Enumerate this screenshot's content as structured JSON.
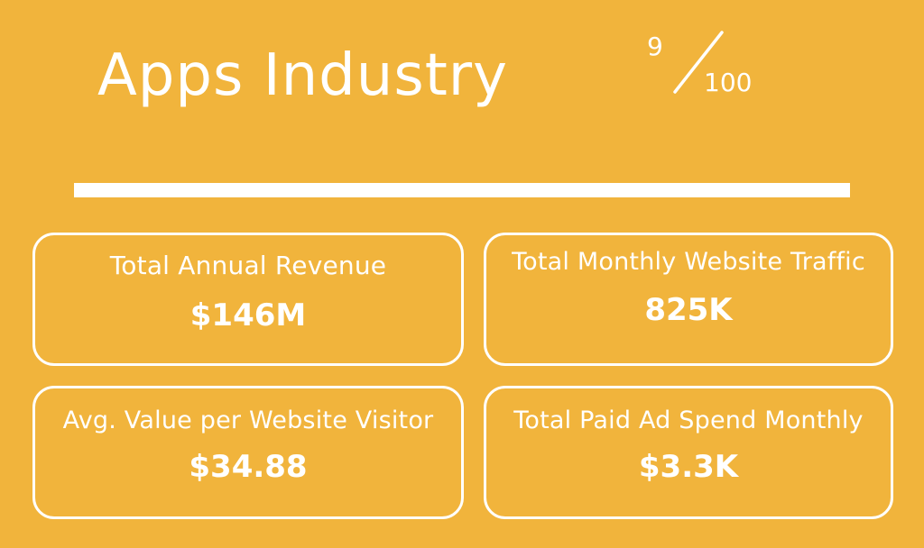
{
  "header": {
    "title": "Apps Industry",
    "rank": {
      "value": "9",
      "total": "100"
    }
  },
  "stats": [
    {
      "label": "Total Annual Revenue",
      "value": "$146M"
    },
    {
      "label": "Total Monthly Website Traffic",
      "value": "825K"
    },
    {
      "label": "Avg. Value per Website Visitor",
      "value": "$34.88"
    },
    {
      "label": "Total Paid Ad Spend Monthly",
      "value": "$3.3K"
    }
  ],
  "colors": {
    "background": "#F1B43C",
    "foreground": "#FFFFFF"
  }
}
